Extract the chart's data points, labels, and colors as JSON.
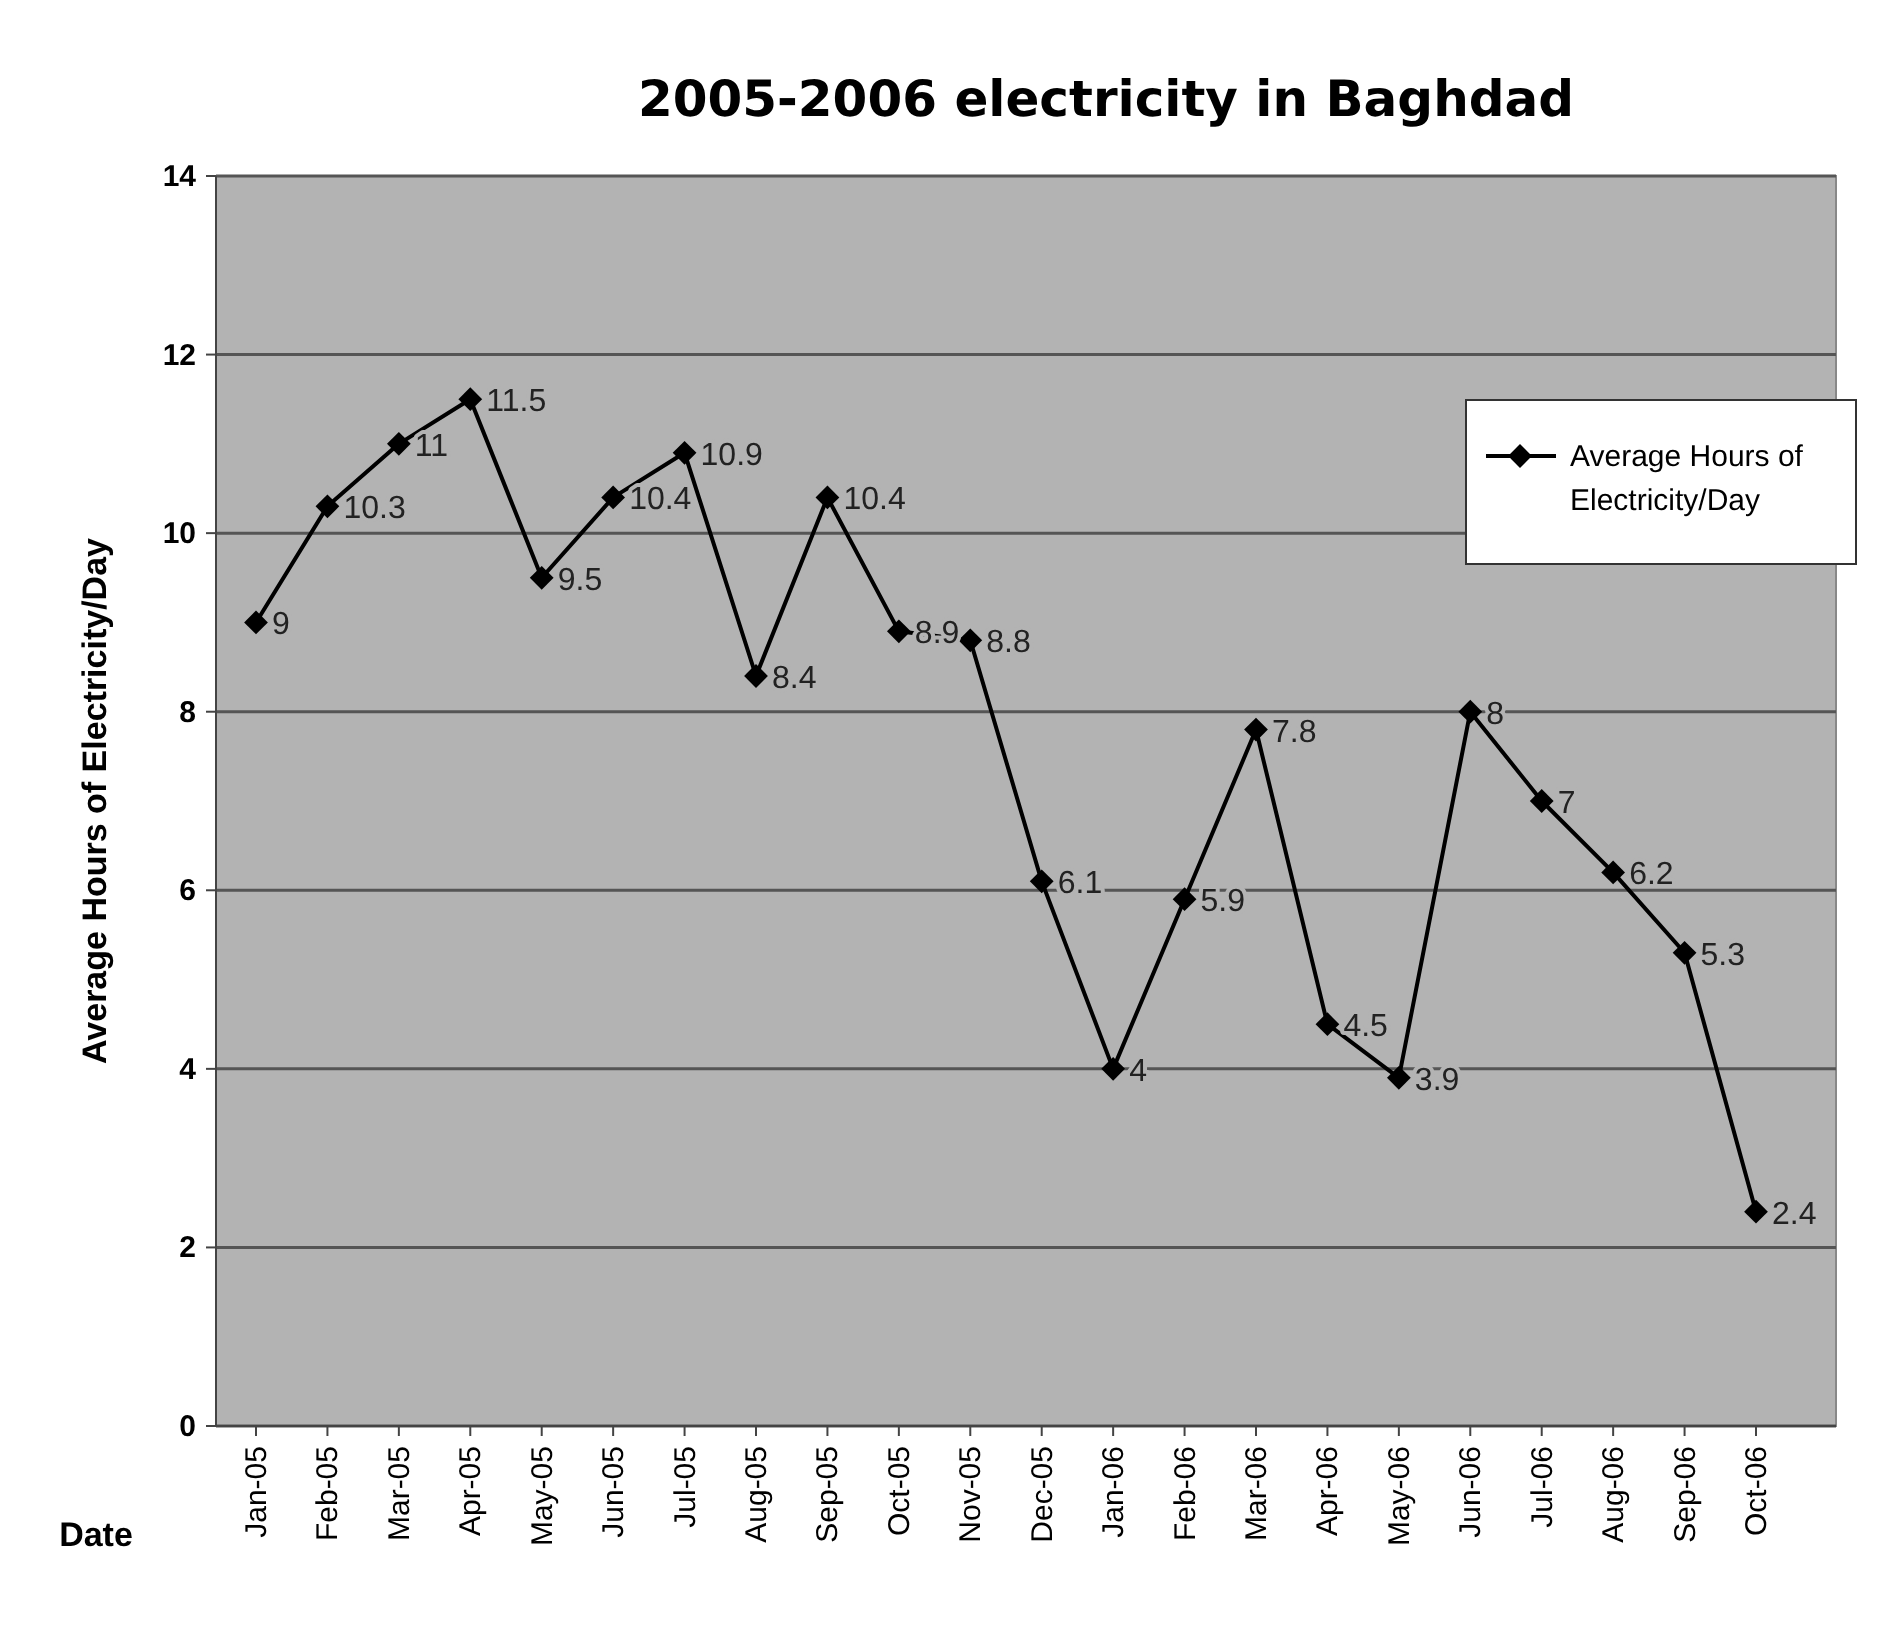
{
  "chart_data": {
    "type": "line",
    "title": "2005-2006 electricity in Baghdad",
    "xlabel": "Date",
    "ylabel": "Average Hours of Electricity/Day",
    "categories": [
      "Jan-05",
      "Feb-05",
      "Mar-05",
      "Apr-05",
      "May-05",
      "Jun-05",
      "Jul-05",
      "Aug-05",
      "Sep-05",
      "Oct-05",
      "Nov-05",
      "Dec-05",
      "Jan-06",
      "Feb-06",
      "Mar-06",
      "Apr-06",
      "May-06",
      "Jun-06",
      "Jul-06",
      "Aug-06",
      "Sep-06",
      "Oct-06"
    ],
    "series": [
      {
        "name": "Average Hours of Electricity/Day",
        "color": "#000000",
        "values": [
          9,
          10.3,
          11,
          11.5,
          9.5,
          10.4,
          10.9,
          8.4,
          10.4,
          8.9,
          8.8,
          6.1,
          4,
          5.9,
          7.8,
          4.5,
          3.9,
          8,
          7,
          6.2,
          5.3,
          2.4
        ]
      }
    ],
    "ylim": [
      0,
      14
    ],
    "yticks": [
      0,
      2,
      4,
      6,
      8,
      10,
      12,
      14
    ],
    "grid": "y",
    "legend": "top right",
    "marker": "diamond",
    "line_style": "solid",
    "data_labels": true
  }
}
